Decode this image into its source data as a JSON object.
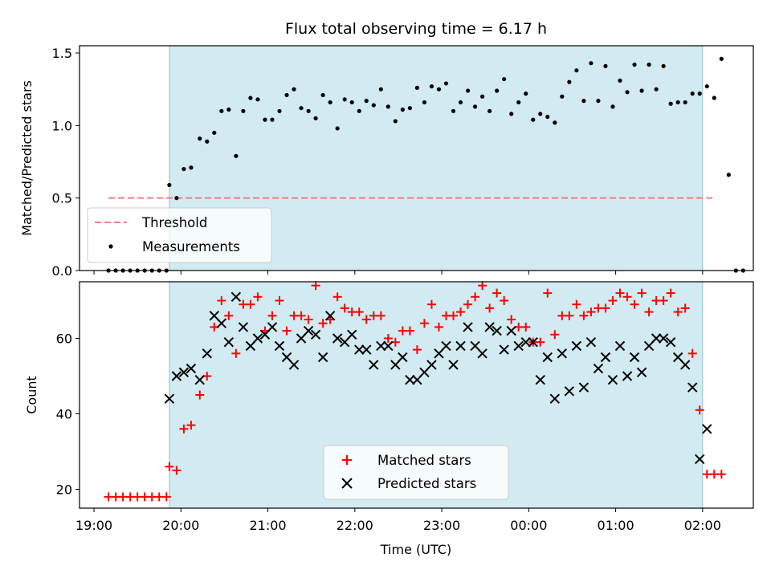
{
  "chart_data": [
    {
      "type": "scatter",
      "title": "Flux total observing time = 6.17 h",
      "ylabel": "Matched/Predicted stars",
      "xlabel": "",
      "ylim": [
        0,
        1.55
      ],
      "yticks": [
        "0.0",
        "0.5",
        "1.0",
        "1.5"
      ],
      "yticks_values": [
        0,
        0.5,
        1.0,
        1.5
      ],
      "legend_position": "lower-left",
      "observing_window_color": "#add8e6",
      "series": [
        {
          "name": "Threshold",
          "style": "dashed-line",
          "color": "#f08080",
          "x_start": "19:10",
          "x_end": "02:08",
          "y": 0.5
        },
        {
          "name": "Measurements",
          "style": "dot",
          "color": "#000000",
          "points": [
            [
              "19:10",
              0
            ],
            [
              "19:15",
              0
            ],
            [
              "19:20",
              0
            ],
            [
              "19:25",
              0
            ],
            [
              "19:30",
              0
            ],
            [
              "19:35",
              0
            ],
            [
              "19:40",
              0
            ],
            [
              "19:45",
              0
            ],
            [
              "19:50",
              0
            ],
            [
              "19:52",
              0.59
            ],
            [
              "19:57",
              0.5
            ],
            [
              "20:02",
              0.7
            ],
            [
              "20:07",
              0.71
            ],
            [
              "20:13",
              0.91
            ],
            [
              "20:18",
              0.89
            ],
            [
              "20:23",
              0.95
            ],
            [
              "20:28",
              1.1
            ],
            [
              "20:33",
              1.11
            ],
            [
              "20:38",
              0.79
            ],
            [
              "20:43",
              1.1
            ],
            [
              "20:48",
              1.19
            ],
            [
              "20:53",
              1.18
            ],
            [
              "20:58",
              1.04
            ],
            [
              "21:03",
              1.04
            ],
            [
              "21:08",
              1.1
            ],
            [
              "21:13",
              1.21
            ],
            [
              "21:18",
              1.25
            ],
            [
              "21:23",
              1.12
            ],
            [
              "21:28",
              1.1
            ],
            [
              "21:33",
              1.05
            ],
            [
              "21:38",
              1.21
            ],
            [
              "21:43",
              1.16
            ],
            [
              "21:48",
              0.98
            ],
            [
              "21:53",
              1.18
            ],
            [
              "21:58",
              1.16
            ],
            [
              "22:03",
              1.1
            ],
            [
              "22:08",
              1.17
            ],
            [
              "22:13",
              1.14
            ],
            [
              "22:18",
              1.25
            ],
            [
              "22:23",
              1.13
            ],
            [
              "22:28",
              1.03
            ],
            [
              "22:33",
              1.11
            ],
            [
              "22:38",
              1.12
            ],
            [
              "22:43",
              1.26
            ],
            [
              "22:48",
              1.16
            ],
            [
              "22:53",
              1.27
            ],
            [
              "22:58",
              1.25
            ],
            [
              "23:03",
              1.29
            ],
            [
              "23:08",
              1.1
            ],
            [
              "23:13",
              1.16
            ],
            [
              "23:18",
              1.24
            ],
            [
              "23:23",
              1.13
            ],
            [
              "23:28",
              1.2
            ],
            [
              "23:33",
              1.1
            ],
            [
              "23:38",
              1.24
            ],
            [
              "23:43",
              1.32
            ],
            [
              "23:48",
              1.08
            ],
            [
              "23:53",
              1.16
            ],
            [
              "23:58",
              1.22
            ],
            [
              "00:03",
              1.04
            ],
            [
              "00:08",
              1.08
            ],
            [
              "00:13",
              1.06
            ],
            [
              "00:18",
              1.02
            ],
            [
              "00:23",
              1.2
            ],
            [
              "00:28",
              1.3
            ],
            [
              "00:33",
              1.38
            ],
            [
              "00:38",
              1.17
            ],
            [
              "00:43",
              1.43
            ],
            [
              "00:48",
              1.17
            ],
            [
              "00:53",
              1.41
            ],
            [
              "00:58",
              1.13
            ],
            [
              "01:03",
              1.31
            ],
            [
              "01:08",
              1.23
            ],
            [
              "01:13",
              1.42
            ],
            [
              "01:18",
              1.24
            ],
            [
              "01:23",
              1.42
            ],
            [
              "01:28",
              1.25
            ],
            [
              "01:33",
              1.41
            ],
            [
              "01:38",
              1.15
            ],
            [
              "01:43",
              1.16
            ],
            [
              "01:48",
              1.16
            ],
            [
              "01:53",
              1.22
            ],
            [
              "01:58",
              1.22
            ],
            [
              "02:03",
              1.27
            ],
            [
              "02:08",
              1.19
            ],
            [
              "02:13",
              1.46
            ],
            [
              "02:18",
              0.66
            ],
            [
              "02:23",
              0
            ],
            [
              "02:28",
              0
            ]
          ]
        }
      ]
    },
    {
      "type": "scatter",
      "title": "",
      "ylabel": "Count",
      "xlabel": "Time (UTC)",
      "ylim": [
        15,
        75
      ],
      "yticks": [
        "20",
        "40",
        "60"
      ],
      "yticks_values": [
        20,
        40,
        60
      ],
      "xticks": [
        "19:00",
        "20:00",
        "21:00",
        "22:00",
        "23:00",
        "00:00",
        "01:00",
        "02:00"
      ],
      "legend_position": "lower-center",
      "observing_window_color": "#add8e6",
      "series": [
        {
          "name": "Matched stars",
          "style": "plus",
          "color": "#ff0000",
          "points": [
            [
              "19:10",
              18
            ],
            [
              "19:15",
              18
            ],
            [
              "19:20",
              18
            ],
            [
              "19:25",
              18
            ],
            [
              "19:30",
              18
            ],
            [
              "19:35",
              18
            ],
            [
              "19:40",
              18
            ],
            [
              "19:45",
              18
            ],
            [
              "19:50",
              18
            ],
            [
              "19:52",
              26
            ],
            [
              "19:57",
              25
            ],
            [
              "20:02",
              36
            ],
            [
              "20:07",
              37
            ],
            [
              "20:13",
              45
            ],
            [
              "20:18",
              50
            ],
            [
              "20:23",
              63
            ],
            [
              "20:28",
              70
            ],
            [
              "20:33",
              66
            ],
            [
              "20:38",
              56
            ],
            [
              "20:43",
              69
            ],
            [
              "20:48",
              69
            ],
            [
              "20:53",
              71
            ],
            [
              "20:58",
              62
            ],
            [
              "21:03",
              66
            ],
            [
              "21:08",
              70
            ],
            [
              "21:13",
              62
            ],
            [
              "21:18",
              66
            ],
            [
              "21:23",
              66
            ],
            [
              "21:28",
              65
            ],
            [
              "21:33",
              74
            ],
            [
              "21:38",
              64
            ],
            [
              "21:43",
              65
            ],
            [
              "21:48",
              71
            ],
            [
              "21:53",
              68
            ],
            [
              "21:58",
              67
            ],
            [
              "22:03",
              67
            ],
            [
              "22:08",
              65
            ],
            [
              "22:13",
              66
            ],
            [
              "22:18",
              66
            ],
            [
              "22:23",
              60
            ],
            [
              "22:28",
              59
            ],
            [
              "22:33",
              62
            ],
            [
              "22:38",
              62
            ],
            [
              "22:43",
              57
            ],
            [
              "22:48",
              64
            ],
            [
              "22:53",
              69
            ],
            [
              "22:58",
              63
            ],
            [
              "23:03",
              66
            ],
            [
              "23:08",
              66
            ],
            [
              "23:13",
              67
            ],
            [
              "23:18",
              69
            ],
            [
              "23:23",
              71
            ],
            [
              "23:28",
              74
            ],
            [
              "23:33",
              68
            ],
            [
              "23:38",
              72
            ],
            [
              "23:43",
              70
            ],
            [
              "23:48",
              65
            ],
            [
              "23:53",
              63
            ],
            [
              "23:58",
              63
            ],
            [
              "00:03",
              59
            ],
            [
              "00:08",
              59
            ],
            [
              "00:13",
              72
            ],
            [
              "00:18",
              61
            ],
            [
              "00:23",
              66
            ],
            [
              "00:28",
              66
            ],
            [
              "00:33",
              69
            ],
            [
              "00:38",
              66
            ],
            [
              "00:43",
              67
            ],
            [
              "00:48",
              68
            ],
            [
              "00:53",
              68
            ],
            [
              "00:58",
              70
            ],
            [
              "01:03",
              72
            ],
            [
              "01:08",
              71
            ],
            [
              "01:13",
              69
            ],
            [
              "01:18",
              72
            ],
            [
              "01:23",
              67
            ],
            [
              "01:28",
              70
            ],
            [
              "01:33",
              70
            ],
            [
              "01:38",
              72
            ],
            [
              "01:43",
              67
            ],
            [
              "01:48",
              68
            ],
            [
              "01:53",
              56
            ],
            [
              "01:58",
              41
            ],
            [
              "02:03",
              24
            ],
            [
              "02:08",
              24
            ],
            [
              "02:13",
              24
            ]
          ]
        },
        {
          "name": "Predicted stars",
          "style": "x",
          "color": "#000000",
          "points": [
            [
              "19:52",
              44
            ],
            [
              "19:57",
              50
            ],
            [
              "20:02",
              51
            ],
            [
              "20:07",
              52
            ],
            [
              "20:13",
              49
            ],
            [
              "20:18",
              56
            ],
            [
              "20:23",
              66
            ],
            [
              "20:28",
              64
            ],
            [
              "20:33",
              59
            ],
            [
              "20:38",
              71
            ],
            [
              "20:43",
              63
            ],
            [
              "20:48",
              58
            ],
            [
              "20:53",
              60
            ],
            [
              "20:58",
              61
            ],
            [
              "21:03",
              63
            ],
            [
              "21:08",
              58
            ],
            [
              "21:13",
              55
            ],
            [
              "21:18",
              53
            ],
            [
              "21:23",
              60
            ],
            [
              "21:28",
              62
            ],
            [
              "21:33",
              61
            ],
            [
              "21:38",
              55
            ],
            [
              "21:43",
              66
            ],
            [
              "21:48",
              60
            ],
            [
              "21:53",
              59
            ],
            [
              "21:58",
              61
            ],
            [
              "22:03",
              57
            ],
            [
              "22:08",
              57
            ],
            [
              "22:13",
              53
            ],
            [
              "22:18",
              58
            ],
            [
              "22:23",
              58
            ],
            [
              "22:28",
              53
            ],
            [
              "22:33",
              55
            ],
            [
              "22:38",
              49
            ],
            [
              "22:43",
              49
            ],
            [
              "22:48",
              51
            ],
            [
              "22:53",
              53
            ],
            [
              "22:58",
              56
            ],
            [
              "23:03",
              58
            ],
            [
              "23:08",
              53
            ],
            [
              "23:13",
              58
            ],
            [
              "23:18",
              63
            ],
            [
              "23:23",
              58
            ],
            [
              "23:28",
              56
            ],
            [
              "23:33",
              63
            ],
            [
              "23:38",
              62
            ],
            [
              "23:43",
              57
            ],
            [
              "23:48",
              62
            ],
            [
              "23:53",
              58
            ],
            [
              "23:58",
              59
            ],
            [
              "00:03",
              59
            ],
            [
              "00:08",
              49
            ],
            [
              "00:13",
              55
            ],
            [
              "00:18",
              44
            ],
            [
              "00:23",
              56
            ],
            [
              "00:28",
              46
            ],
            [
              "00:33",
              58
            ],
            [
              "00:38",
              47
            ],
            [
              "00:43",
              59
            ],
            [
              "00:48",
              52
            ],
            [
              "00:53",
              55
            ],
            [
              "00:58",
              49
            ],
            [
              "01:03",
              58
            ],
            [
              "01:08",
              50
            ],
            [
              "01:13",
              55
            ],
            [
              "01:18",
              51
            ],
            [
              "01:23",
              58
            ],
            [
              "01:28",
              60
            ],
            [
              "01:33",
              60
            ],
            [
              "01:38",
              59
            ],
            [
              "01:43",
              55
            ],
            [
              "01:48",
              53
            ],
            [
              "01:53",
              47
            ],
            [
              "01:58",
              28
            ],
            [
              "02:03",
              36
            ]
          ]
        }
      ]
    }
  ],
  "shared_x": {
    "label": "Time (UTC)",
    "xlim": [
      "18:50",
      "02:35"
    ],
    "xticks": [
      "19:00",
      "20:00",
      "21:00",
      "22:00",
      "23:00",
      "00:00",
      "01:00",
      "02:00"
    ],
    "observing_window": [
      "19:52",
      "02:00"
    ]
  }
}
